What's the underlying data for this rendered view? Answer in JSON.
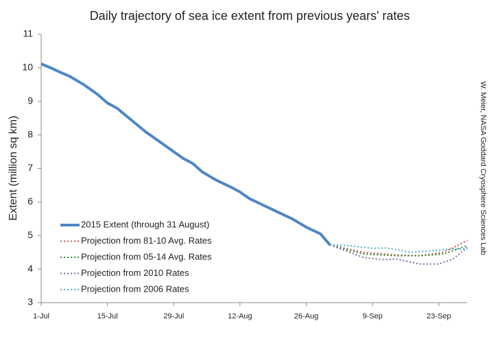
{
  "chart_data": {
    "type": "line",
    "title": "Daily trajectory of sea ice extent from previous years' rates",
    "y_label": "Extent (million sq km)",
    "credit": "W. Meier, NASA Goddard Cryosphere Sciences Lab",
    "xlim": [
      0,
      90
    ],
    "xticks": [
      {
        "value": 0,
        "label": "1-Jul"
      },
      {
        "value": 14,
        "label": "15-Jul"
      },
      {
        "value": 28,
        "label": "29-Jul"
      },
      {
        "value": 42,
        "label": "12-Aug"
      },
      {
        "value": 56,
        "label": "26-Aug"
      },
      {
        "value": 70,
        "label": "9-Sep"
      },
      {
        "value": 84,
        "label": "23-Sep"
      }
    ],
    "ylim": [
      3,
      11
    ],
    "yticks": [
      3,
      4,
      5,
      6,
      7,
      8,
      9,
      10,
      11
    ],
    "grid": false,
    "legend": "lower left",
    "series": [
      {
        "name": "2015 Extent (through 31 August)",
        "color": "#4f86c6",
        "style": "solid",
        "x": [
          0,
          2,
          4,
          6,
          9,
          12,
          14,
          16,
          19,
          22,
          25,
          28,
          30,
          32,
          34,
          37,
          40,
          42,
          44,
          47,
          50,
          53,
          56,
          59,
          61
        ],
        "values": [
          10.12,
          10.0,
          9.87,
          9.75,
          9.5,
          9.2,
          8.95,
          8.8,
          8.45,
          8.1,
          7.8,
          7.5,
          7.3,
          7.15,
          6.9,
          6.65,
          6.45,
          6.3,
          6.1,
          5.9,
          5.7,
          5.5,
          5.25,
          5.05,
          4.72
        ]
      },
      {
        "name": "Projection from 81-10 Avg. Rates",
        "color": "#c0504d",
        "style": "dotted",
        "x": [
          61,
          68,
          75,
          80,
          85,
          90
        ],
        "values": [
          4.72,
          4.5,
          4.42,
          4.4,
          4.5,
          4.85
        ]
      },
      {
        "name": "Projection from 05-14 Avg. Rates",
        "color": "#2e8b2e",
        "style": "dotted",
        "x": [
          61,
          68,
          75,
          80,
          85,
          90
        ],
        "values": [
          4.72,
          4.45,
          4.4,
          4.4,
          4.45,
          4.7
        ]
      },
      {
        "name": "Projection from 2010 Rates",
        "color": "#8064a2",
        "style": "dotted",
        "x": [
          61,
          68,
          72,
          75,
          80,
          84,
          87,
          90
        ],
        "values": [
          4.72,
          4.35,
          4.28,
          4.3,
          4.15,
          4.15,
          4.3,
          4.65
        ]
      },
      {
        "name": "Projection from 2006 Rates",
        "color": "#4bacc6",
        "style": "dotted",
        "x": [
          61,
          65,
          70,
          73,
          78,
          83,
          87,
          90
        ],
        "values": [
          4.72,
          4.7,
          4.62,
          4.63,
          4.5,
          4.55,
          4.6,
          4.6
        ]
      }
    ]
  }
}
